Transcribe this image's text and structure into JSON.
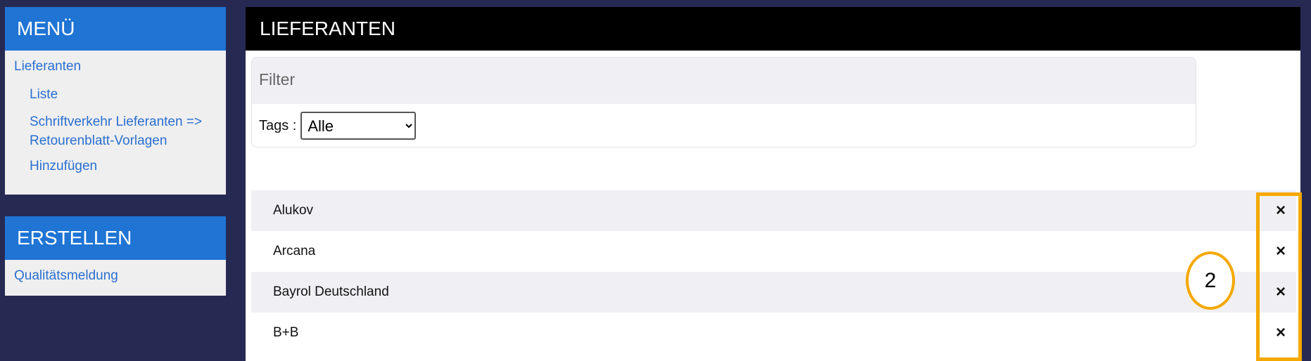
{
  "sidebar": {
    "menu": {
      "title": "MENÜ",
      "section": "Lieferanten",
      "items": [
        "Liste",
        "Schriftverkehr Lieferanten =>",
        "Retourenblatt-Vorlagen",
        "Hinzufügen"
      ]
    },
    "create": {
      "title": "ERSTELLEN",
      "items": [
        "Qualitätsmeldung"
      ]
    }
  },
  "main": {
    "title": "LIEFERANTEN",
    "filter": {
      "title": "Filter",
      "tags_label": "Tags :",
      "tags_value": "Alle"
    },
    "rows": [
      "Alukov",
      "Arcana",
      "Bayrol Deutschland",
      "B+B"
    ],
    "delete_icon": "×"
  },
  "annotation": {
    "label": "2",
    "color": "#f5a800"
  }
}
